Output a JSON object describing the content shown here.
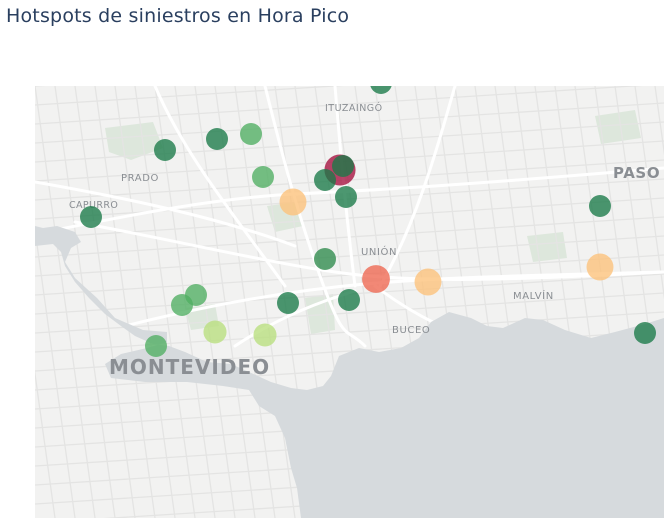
{
  "title": "Hotspots de siniestros en Hora Pico",
  "colors": {
    "land": "#f2f2f1",
    "water": "#d6dadd",
    "green_area": "#dde7dc",
    "road_major": "#ffffff",
    "road_minor": "#e4e4e3",
    "scale": [
      "#1a7a48",
      "#4fae62",
      "#b9df7e",
      "#fdc27a",
      "#ee6650",
      "#a50f3d"
    ]
  },
  "places": [
    {
      "name": "ITUZAINGÓ",
      "size": "small"
    },
    {
      "name": "PRADO",
      "size": "small"
    },
    {
      "name": "CAPURRO",
      "size": "small"
    },
    {
      "name": "UNIÓN",
      "size": "small"
    },
    {
      "name": "MALVÍN",
      "size": "small"
    },
    {
      "name": "BUCEO",
      "size": "small"
    },
    {
      "name": "PASO",
      "size": "medium"
    },
    {
      "name": "MONTEVIDEO",
      "size": "large"
    }
  ],
  "hotspots": [
    {
      "id": 1,
      "level": 0,
      "size": 1,
      "color": "#1a7a48"
    },
    {
      "id": 2,
      "level": 0,
      "size": 1,
      "color": "#1a7a48"
    },
    {
      "id": 3,
      "level": 0,
      "size": 1,
      "color": "#1a7a48"
    },
    {
      "id": 4,
      "level": 1,
      "size": 1,
      "color": "#4fae62"
    },
    {
      "id": 5,
      "level": 1,
      "size": 1,
      "color": "#4fae62"
    },
    {
      "id": 6,
      "level": 5,
      "size": 2,
      "color": "#a50f3d"
    },
    {
      "id": 7,
      "level": 0,
      "size": 1,
      "color": "#1a7a48"
    },
    {
      "id": 8,
      "level": 0,
      "size": 1,
      "color": "#1a7a48"
    },
    {
      "id": 9,
      "level": 3,
      "size": 1.5,
      "color": "#fdc27a"
    },
    {
      "id": 10,
      "level": 0,
      "size": 1,
      "color": "#1a7a48"
    },
    {
      "id": 11,
      "level": 0,
      "size": 1,
      "color": "#1a7a48"
    },
    {
      "id": 12,
      "level": 0,
      "size": 1,
      "color": "#1a7a48"
    },
    {
      "id": 13,
      "level": 0,
      "size": 1,
      "color": "#2e8b4c"
    },
    {
      "id": 14,
      "level": 4,
      "size": 1.6,
      "color": "#ee6650"
    },
    {
      "id": 15,
      "level": 3,
      "size": 1.5,
      "color": "#fdc27a"
    },
    {
      "id": 16,
      "level": 3,
      "size": 1.5,
      "color": "#fdc27a"
    },
    {
      "id": 17,
      "level": 1,
      "size": 1,
      "color": "#4fae62"
    },
    {
      "id": 18,
      "level": 1,
      "size": 1,
      "color": "#4fae62"
    },
    {
      "id": 19,
      "level": 0,
      "size": 1,
      "color": "#1a7a48"
    },
    {
      "id": 20,
      "level": 0,
      "size": 1,
      "color": "#1a7a48"
    },
    {
      "id": 21,
      "level": 2,
      "size": 1.1,
      "color": "#b9df7e"
    },
    {
      "id": 22,
      "level": 2,
      "size": 1.1,
      "color": "#b9df7e"
    },
    {
      "id": 23,
      "level": 1,
      "size": 1,
      "color": "#4fae62"
    },
    {
      "id": 24,
      "level": 0,
      "size": 1,
      "color": "#1a7a48"
    }
  ]
}
